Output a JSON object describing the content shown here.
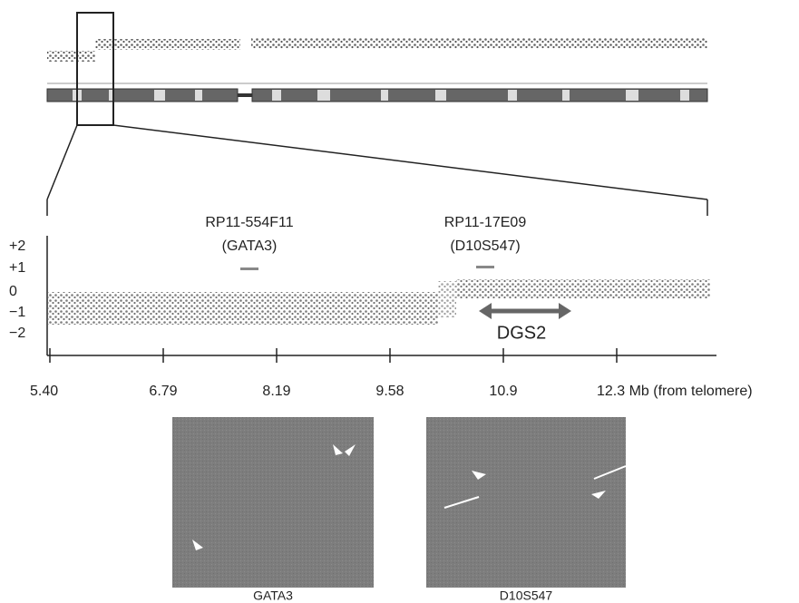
{
  "plot": {
    "probes": [
      {
        "name": "RP11-554F11",
        "locus": "(GATA3)"
      },
      {
        "name": "RP11-17E09",
        "locus": "(D10S547)"
      }
    ],
    "y_tick_labels": [
      "+2",
      "+1",
      "0",
      "−1",
      "−2"
    ],
    "x_tick_labels": [
      "5.40",
      "6.79",
      "8.19",
      "9.58",
      "10.9",
      "12.3 Mb (from telomere)"
    ],
    "region_label": "DGS2"
  },
  "images": [
    {
      "caption": "GATA3"
    },
    {
      "caption": "D10S547"
    }
  ]
}
